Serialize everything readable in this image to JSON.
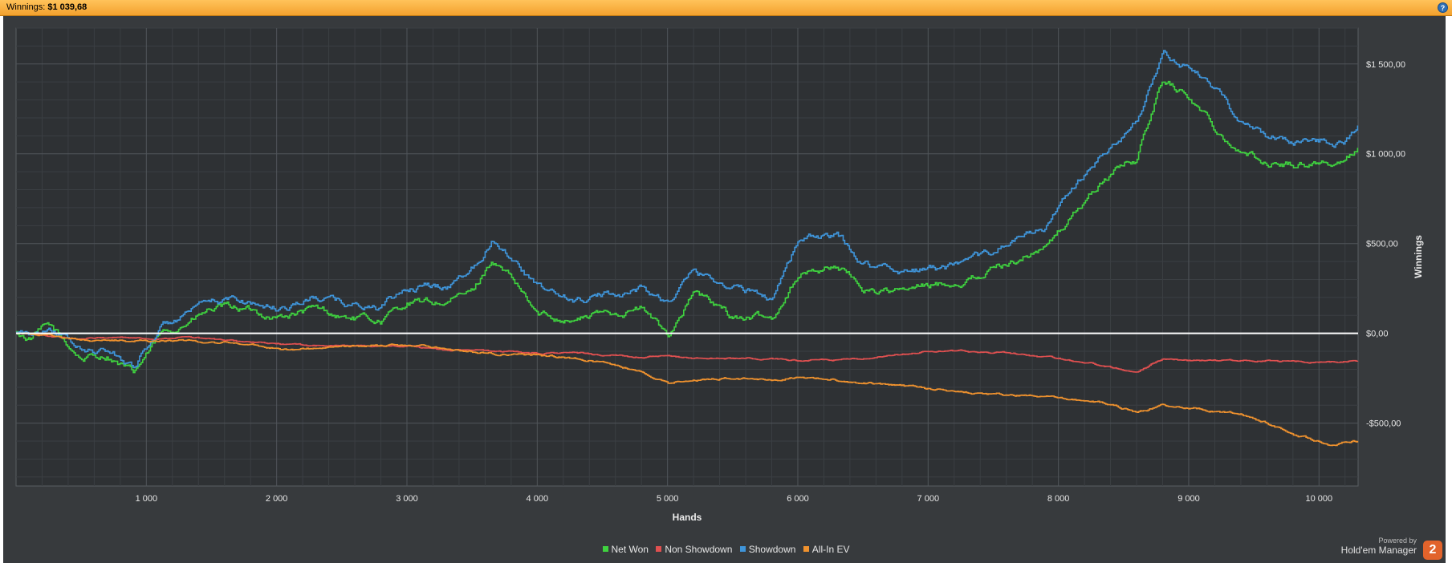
{
  "header": {
    "winnings_label": "Winnings:",
    "winnings_value": "$1 039,68",
    "help_icon": "help-icon"
  },
  "colors": {
    "panel_bg": "#373a3d",
    "net_won": "#3fd23f",
    "non_showdown": "#e05050",
    "showdown": "#3f95da",
    "all_in_ev": "#f0922e",
    "zero_line": "#ffffff"
  },
  "powered_by": {
    "line1": "Powered by",
    "line2": "Hold'em Manager",
    "logo_text": "2"
  },
  "chart_data": {
    "type": "line",
    "title": "",
    "xlabel": "Hands",
    "ylabel": "Winnings",
    "xlim": [
      0,
      10300
    ],
    "ylim": [
      -850,
      1700
    ],
    "x_ticks": [
      1000,
      2000,
      3000,
      4000,
      5000,
      6000,
      7000,
      8000,
      9000,
      10000
    ],
    "x_tick_labels": [
      "1 000",
      "2 000",
      "3 000",
      "4 000",
      "5 000",
      "6 000",
      "7 000",
      "8 000",
      "9 000",
      "10 000"
    ],
    "y_ticks": [
      -500,
      0,
      500,
      1000,
      1500
    ],
    "y_tick_labels": [
      "-$500,00",
      "$0,00",
      "$500,00",
      "$1 000,00",
      "$1 500,00"
    ],
    "grid": true,
    "legend_position": "bottom-center",
    "series": [
      {
        "name": "Net Won",
        "color": "#3fd23f",
        "x": [
          0,
          100,
          250,
          500,
          700,
          900,
          1100,
          1300,
          1500,
          1700,
          2000,
          2300,
          2500,
          2800,
          3000,
          3300,
          3500,
          3650,
          3800,
          4000,
          4300,
          4500,
          4800,
          5000,
          5200,
          5500,
          5800,
          6000,
          6300,
          6500,
          6800,
          7000,
          7300,
          7600,
          7900,
          8000,
          8200,
          8300,
          8500,
          8600,
          8800,
          9000,
          9200,
          9400,
          9600,
          9800,
          10000,
          10200,
          10300
        ],
        "values": [
          0,
          -30,
          40,
          -140,
          -120,
          -230,
          -20,
          60,
          130,
          140,
          90,
          130,
          90,
          70,
          170,
          170,
          230,
          410,
          300,
          100,
          80,
          110,
          140,
          -10,
          230,
          90,
          80,
          330,
          380,
          250,
          230,
          260,
          300,
          390,
          480,
          560,
          740,
          820,
          950,
          970,
          1420,
          1320,
          1150,
          1010,
          950,
          940,
          960,
          940,
          1040
        ]
      },
      {
        "name": "Non Showdown",
        "color": "#e05050",
        "x": [
          0,
          200,
          500,
          800,
          1000,
          1300,
          1600,
          2000,
          2300,
          2600,
          3000,
          3300,
          3700,
          4000,
          4300,
          4700,
          5000,
          5300,
          5600,
          6000,
          6300,
          6600,
          6900,
          7000,
          7300,
          7600,
          7900,
          8200,
          8500,
          8600,
          8800,
          9000,
          9300,
          9600,
          9900,
          10100,
          10300
        ],
        "values": [
          0,
          -10,
          -30,
          -20,
          -30,
          -20,
          -40,
          -60,
          -70,
          -70,
          -70,
          -90,
          -100,
          -110,
          -110,
          -130,
          -130,
          -140,
          -140,
          -150,
          -150,
          -140,
          -110,
          -100,
          -100,
          -110,
          -130,
          -160,
          -200,
          -210,
          -140,
          -150,
          -150,
          -150,
          -160,
          -160,
          -150
        ]
      },
      {
        "name": "Showdown",
        "color": "#3f95da",
        "x": [
          0,
          100,
          250,
          500,
          700,
          900,
          1100,
          1300,
          1500,
          1700,
          2000,
          2300,
          2500,
          2800,
          3000,
          3300,
          3500,
          3650,
          3800,
          4000,
          4300,
          4500,
          4800,
          5000,
          5200,
          5500,
          5800,
          6000,
          6300,
          6500,
          6800,
          7000,
          7300,
          7600,
          7900,
          8000,
          8200,
          8300,
          8500,
          8600,
          8800,
          9000,
          9200,
          9400,
          9600,
          9800,
          10000,
          10200,
          10300
        ],
        "values": [
          0,
          -20,
          50,
          -100,
          -100,
          -180,
          30,
          100,
          160,
          190,
          140,
          200,
          170,
          140,
          250,
          260,
          370,
          530,
          440,
          250,
          180,
          210,
          250,
          170,
          340,
          260,
          200,
          520,
          540,
          390,
          350,
          360,
          370,
          500,
          590,
          700,
          880,
          960,
          1090,
          1190,
          1560,
          1480,
          1360,
          1180,
          1100,
          1080,
          1080,
          1070,
          1170
        ]
      },
      {
        "name": "All-In EV",
        "color": "#f0922e",
        "x": [
          0,
          300,
          600,
          900,
          1200,
          1500,
          1800,
          2100,
          2400,
          2700,
          3000,
          3300,
          3600,
          3900,
          4200,
          4500,
          4800,
          5000,
          5200,
          5500,
          5800,
          6000,
          6300,
          6600,
          6900,
          7200,
          7500,
          7800,
          8100,
          8400,
          8600,
          8800,
          9100,
          9400,
          9600,
          9800,
          10000,
          10100,
          10300
        ],
        "values": [
          0,
          -20,
          -40,
          -40,
          -40,
          -50,
          -60,
          -90,
          -80,
          -70,
          -60,
          -80,
          -110,
          -120,
          -130,
          -160,
          -210,
          -280,
          -260,
          -250,
          -260,
          -240,
          -260,
          -280,
          -300,
          -320,
          -340,
          -350,
          -370,
          -390,
          -440,
          -400,
          -420,
          -450,
          -500,
          -560,
          -600,
          -620,
          -600
        ]
      }
    ]
  }
}
